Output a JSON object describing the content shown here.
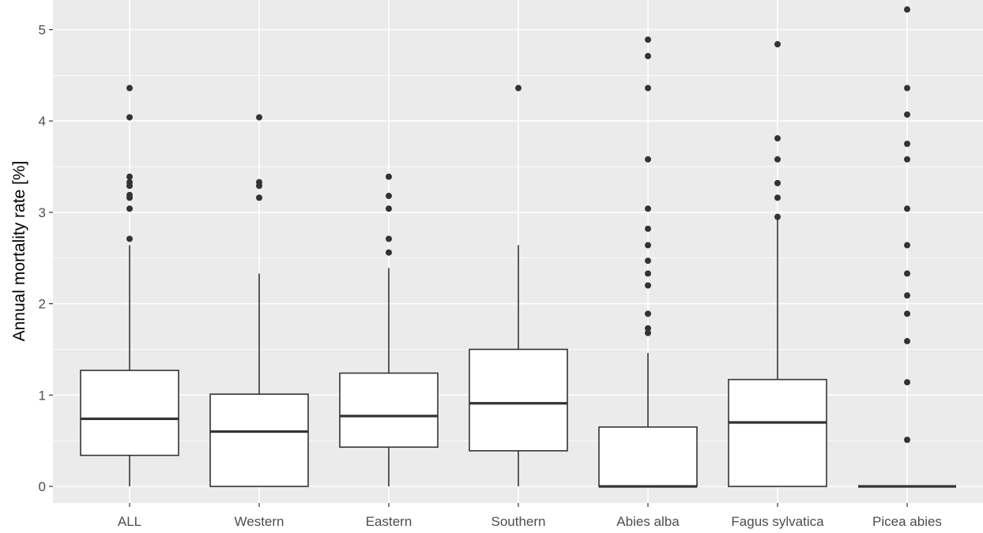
{
  "chart_data": {
    "type": "boxplot",
    "title": "",
    "xlabel": "",
    "ylabel": "Annual mortality rate [%]",
    "ylim": [
      -0.18,
      5.25
    ],
    "yticks": [
      0,
      1,
      2,
      3,
      4,
      5
    ],
    "grid": true,
    "legend": "none",
    "colors": {
      "panel_background": "#ebebeb",
      "grid_line": "#ffffff",
      "box_fill": "#ffffff",
      "box_stroke": "#333333",
      "outlier": "#333333",
      "tick_text": "#4d4d4d"
    },
    "categories": [
      "ALL",
      "Western",
      "Eastern",
      "Southern",
      "Abies alba",
      "Fagus sylvatica",
      "Picea abies"
    ],
    "boxes": [
      {
        "category": "ALL",
        "whisker_low": 0,
        "q1": 0.34,
        "median": 0.74,
        "q3": 1.27,
        "whisker_high": 2.64,
        "outliers": [
          4.36,
          4.04,
          3.39,
          3.33,
          3.29,
          3.19,
          3.16,
          3.04,
          2.71
        ]
      },
      {
        "category": "Western",
        "whisker_low": 0,
        "q1": 0,
        "median": 0.6,
        "q3": 1.01,
        "whisker_high": 2.33,
        "outliers": [
          4.04,
          3.33,
          3.29,
          3.16
        ]
      },
      {
        "category": "Eastern",
        "whisker_low": 0,
        "q1": 0.43,
        "median": 0.77,
        "q3": 1.24,
        "whisker_high": 2.39,
        "outliers": [
          3.39,
          3.18,
          3.04,
          2.71,
          2.56
        ]
      },
      {
        "category": "Southern",
        "whisker_low": 0,
        "q1": 0.39,
        "median": 0.91,
        "q3": 1.5,
        "whisker_high": 2.64,
        "outliers": [
          4.36
        ]
      },
      {
        "category": "Abies alba",
        "whisker_low": 0,
        "q1": 0,
        "median": 0,
        "q3": 0.65,
        "whisker_high": 1.46,
        "outliers": [
          4.89,
          4.71,
          4.36,
          3.58,
          3.04,
          2.82,
          2.64,
          2.47,
          2.33,
          2.2,
          1.89,
          1.73,
          1.68
        ]
      },
      {
        "category": "Fagus sylvatica",
        "whisker_low": 0,
        "q1": 0,
        "median": 0.7,
        "q3": 1.17,
        "whisker_high": 2.95,
        "outliers": [
          4.84,
          3.81,
          3.58,
          3.32,
          3.16,
          2.95
        ]
      },
      {
        "category": "Picea abies",
        "whisker_low": 0,
        "q1": 0,
        "median": 0,
        "q3": 0,
        "whisker_high": 0,
        "outliers": [
          5.22,
          4.36,
          4.07,
          3.75,
          3.58,
          3.04,
          2.64,
          2.33,
          2.09,
          1.89,
          1.59,
          1.14,
          0.51
        ]
      }
    ]
  }
}
